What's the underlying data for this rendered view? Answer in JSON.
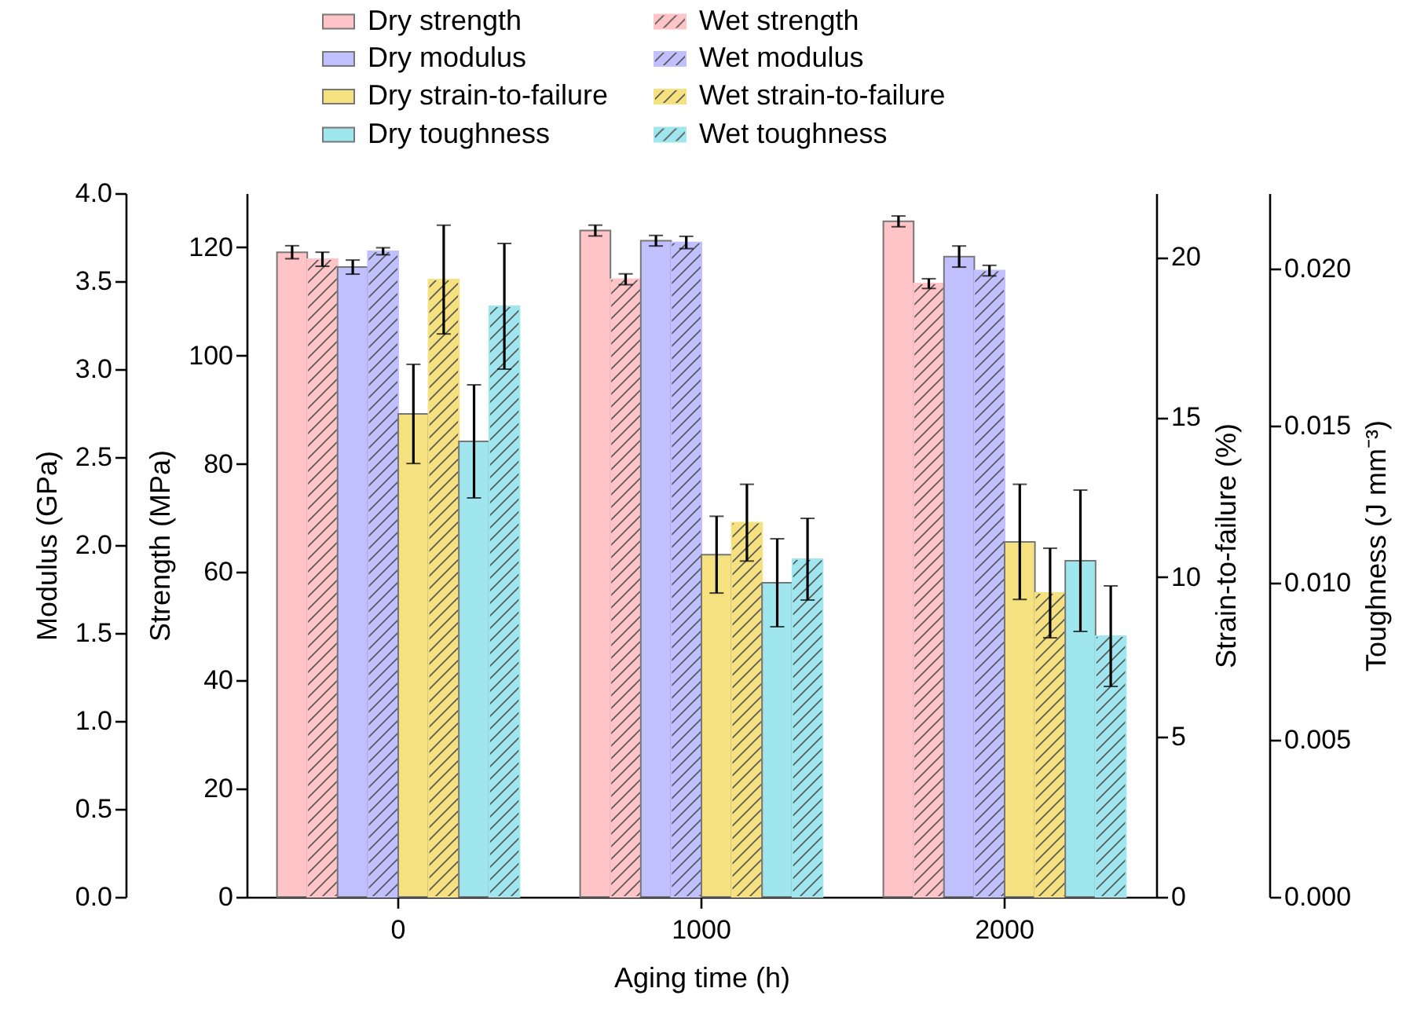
{
  "chart_data": [
    {
      "type": "bar",
      "xlabel": "Aging time (h)",
      "categories": [
        "0",
        "1000",
        "2000"
      ],
      "ylabel": "Strength (MPa)",
      "ylim": [
        0,
        130
      ],
      "yticks": [
        0,
        20,
        40,
        60,
        80,
        100,
        120
      ],
      "y2label": "Strain-to-failure (%)",
      "y2lim": [
        0,
        22
      ],
      "y2ticks": [
        0,
        5,
        10,
        15,
        20
      ],
      "y3label": "Modulus (GPa)",
      "y3lim": [
        0,
        4
      ],
      "y3ticks": [
        {
          "value": 0,
          "label": "0.0"
        },
        {
          "value": 0.5,
          "label": "0.5"
        },
        {
          "value": 1,
          "label": "1.0"
        },
        {
          "value": 1.5,
          "label": "1.5"
        },
        {
          "value": 2,
          "label": "2.0"
        },
        {
          "value": 2.5,
          "label": "2.5"
        },
        {
          "value": 3,
          "label": "3.0"
        },
        {
          "value": 3.5,
          "label": "3.5"
        },
        {
          "value": 4,
          "label": "4.0"
        }
      ],
      "legend": "top",
      "series": [
        {
          "name": "Dry strength",
          "color": "#ffc4c8",
          "values": [
            119.1,
            123.1,
            124.8
          ],
          "errors": [
            1.2,
            1.0,
            1.0
          ]
        },
        {
          "name": "Wet strength",
          "color": "#ffc4c8",
          "values": [
            117.8,
            114.1,
            113.3
          ],
          "errors": [
            1.3,
            1.0,
            0.9
          ]
        },
        {
          "name": "Dry modulus",
          "color": "#c0c0ff",
          "axis": "y3",
          "values": [
            3.58,
            3.73,
            3.64
          ],
          "errors": [
            0.04,
            0.03,
            0.06
          ]
        },
        {
          "name": "Wet modulus",
          "color": "#c0c0ff",
          "axis": "y3",
          "values": [
            3.67,
            3.72,
            3.56
          ],
          "errors": [
            0.02,
            0.035,
            0.03
          ]
        },
        {
          "name": "Dry strain-to-failure",
          "color": "#f5e17f",
          "axis": "y2",
          "values": [
            15.1,
            10.7,
            11.1
          ],
          "errors": [
            1.55,
            1.2,
            1.8
          ]
        },
        {
          "name": "Wet strain-to-failure",
          "color": "#f5e17f",
          "axis": "y2",
          "values": [
            19.3,
            11.7,
            9.5
          ],
          "errors": [
            1.7,
            1.2,
            1.4
          ]
        }
      ]
    },
    {
      "type": "bar",
      "categories": [
        "0",
        "1000",
        "2000"
      ],
      "tick_labels": "y",
      "ylabel": "Toughness (J mm⁻³)",
      "ylim": [
        0,
        0.0224
      ],
      "yticks": [
        {
          "value": 0,
          "label": "0.000"
        },
        {
          "value": 0.005,
          "label": "0.005"
        },
        {
          "value": 0.01,
          "label": "0.010"
        },
        {
          "value": 0.015,
          "label": "0.015"
        },
        {
          "value": 0.02,
          "label": "0.020"
        }
      ],
      "legend": "top",
      "series": [
        {
          "name": "Dry toughness",
          "color": "#a0e6ee",
          "values": [
            0.0145,
            0.01,
            0.0107
          ],
          "errors": [
            0.0018,
            0.0014,
            0.00225
          ]
        },
        {
          "name": "Wet toughness",
          "color": "#a0e6ee",
          "values": [
            0.0188,
            0.01075,
            0.0083
          ],
          "errors": [
            0.002,
            0.0013,
            0.0016
          ]
        }
      ]
    }
  ]
}
